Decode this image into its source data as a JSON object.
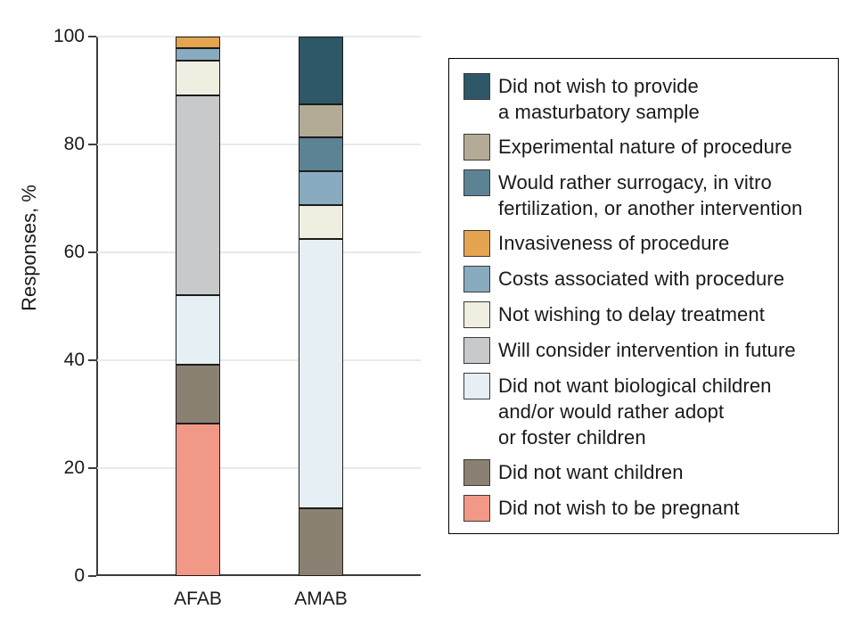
{
  "chart_data": {
    "type": "bar",
    "stacked": true,
    "orientation": "vertical",
    "title": "",
    "xlabel": "",
    "ylabel": "Responses, %",
    "ylim": [
      0,
      100
    ],
    "yticks": [
      0,
      20,
      40,
      60,
      80,
      100
    ],
    "grid": "horizontal-light",
    "legend_position": "right",
    "categories": [
      "AFAB",
      "AMAB"
    ],
    "series": [
      {
        "name": "Did not wish to be pregnant",
        "label_lines": [
          "Did not wish to be pregnant"
        ],
        "color": "#f29886",
        "values": [
          28.3,
          0
        ]
      },
      {
        "name": "Did not want children",
        "label_lines": [
          "Did not want children"
        ],
        "color": "#8b8172",
        "values": [
          10.9,
          12.5
        ]
      },
      {
        "name": "Did not want biological children and/or would rather adopt or foster children",
        "label_lines": [
          "Did not want biological children",
          "and/or would rather adopt",
          "or foster children"
        ],
        "color": "#e6eff4",
        "values": [
          13.0,
          50.0
        ]
      },
      {
        "name": "Will consider intervention in future",
        "label_lines": [
          "Will consider intervention in future"
        ],
        "color": "#c7c9cb",
        "values": [
          37.0,
          0
        ]
      },
      {
        "name": "Not wishing to delay treatment",
        "label_lines": [
          "Not wishing to delay treatment"
        ],
        "color": "#efeee1",
        "values": [
          6.5,
          6.25
        ]
      },
      {
        "name": "Costs associated with procedure",
        "label_lines": [
          "Costs associated with procedure"
        ],
        "color": "#88abc0",
        "values": [
          2.2,
          6.25
        ]
      },
      {
        "name": "Invasiveness of procedure",
        "label_lines": [
          "Invasiveness of procedure"
        ],
        "color": "#e5a44f",
        "values": [
          2.2,
          0
        ]
      },
      {
        "name": "Would rather surrogacy, in vitro fertilization, or another intervention",
        "label_lines": [
          "Would rather surrogacy, in vitro",
          "fertilization, or another intervention"
        ],
        "color": "#5c8394",
        "values": [
          0,
          6.25
        ]
      },
      {
        "name": "Experimental nature of procedure",
        "label_lines": [
          "Experimental nature of procedure"
        ],
        "color": "#b4ab97",
        "values": [
          0,
          6.25
        ]
      },
      {
        "name": "Did not wish to provide a masturbatory sample",
        "label_lines": [
          "Did not wish to provide",
          "a masturbatory sample"
        ],
        "color": "#2e5767",
        "values": [
          0,
          12.5
        ]
      }
    ]
  },
  "colors": {
    "axis": "#3d3d3d",
    "gridline": "#e9e9e9",
    "segment_border": "#1c1c1c",
    "text": "#1a1a1a",
    "background": "#ffffff"
  }
}
